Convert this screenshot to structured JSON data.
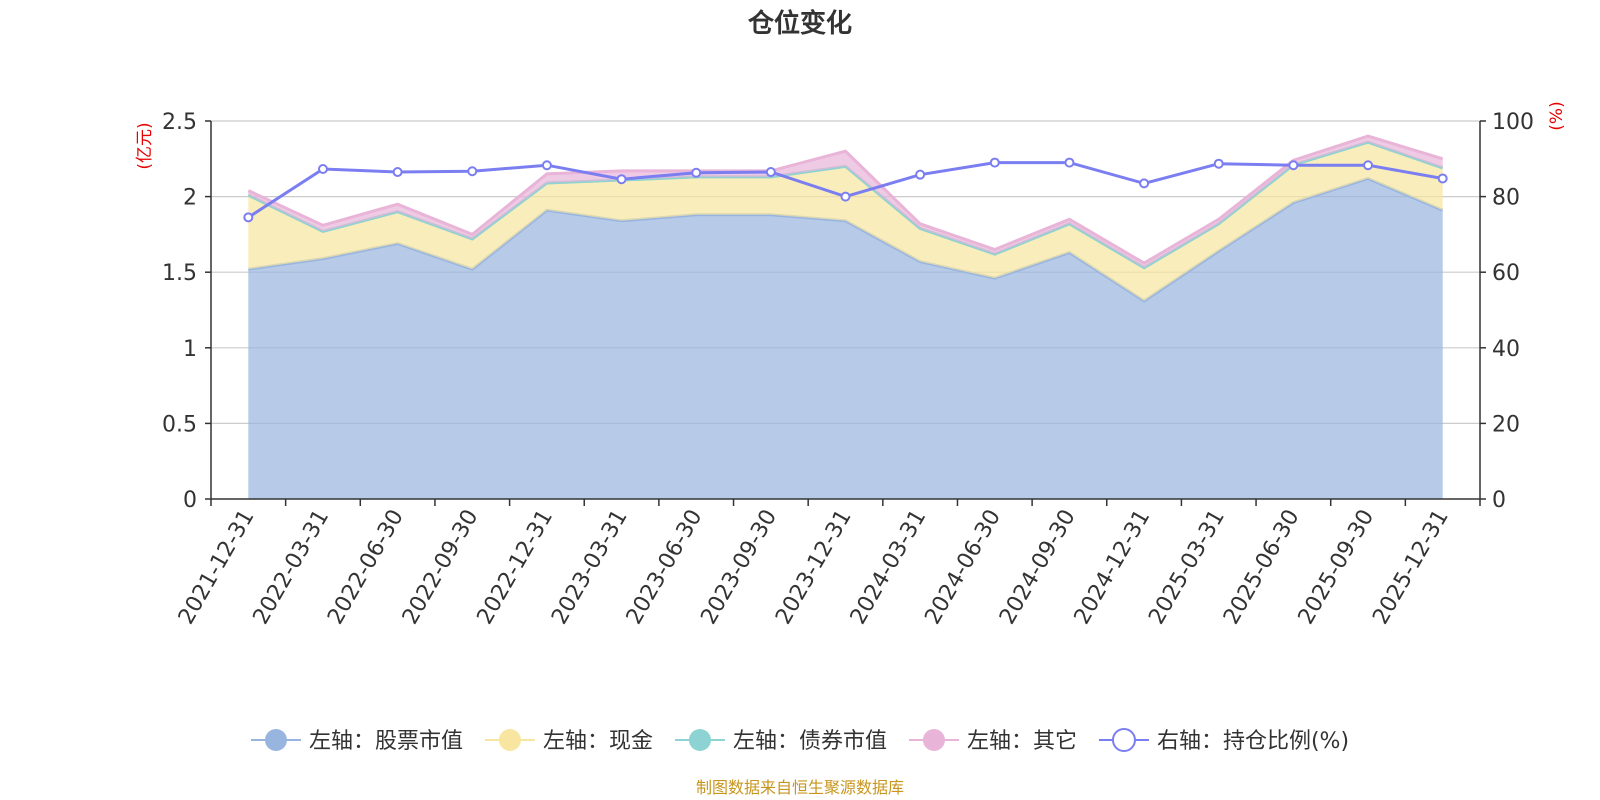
{
  "colors": {
    "stock": "#98b5e0",
    "cash": "#f8e6a0",
    "bond": "#8dd3d3",
    "other": "#e8b4d8",
    "ratio": "#7b7ef0",
    "unit": "#e60000",
    "source": "#c8961e"
  },
  "chart_data": {
    "type": "area",
    "title": "仓位变化",
    "y_left_unit": "(亿元)",
    "y_right_unit": "(%)",
    "y_left_range": [
      0,
      2.5
    ],
    "y_left_ticks": [
      "0",
      "0.5",
      "1",
      "1.5",
      "2",
      "2.5"
    ],
    "y_right_range": [
      0,
      100
    ],
    "y_right_ticks": [
      "0",
      "20",
      "40",
      "60",
      "80",
      "100"
    ],
    "grid": true,
    "legend_position": "bottom",
    "categories": [
      "2021-12-31",
      "2022-03-31",
      "2022-06-30",
      "2022-09-30",
      "2022-12-31",
      "2023-03-31",
      "2023-06-30",
      "2023-09-30",
      "2023-12-31",
      "2024-03-31",
      "2024-06-30",
      "2024-09-30",
      "2024-12-31",
      "2025-03-31",
      "2025-06-30",
      "2025-09-30",
      "2025-12-31"
    ],
    "series": [
      {
        "name": "左轴：股票市值",
        "axis": "left",
        "stacked": true,
        "color_key": "stock",
        "values": [
          1.52,
          1.59,
          1.69,
          1.52,
          1.91,
          1.84,
          1.88,
          1.88,
          1.84,
          1.57,
          1.46,
          1.63,
          1.31,
          1.64,
          1.96,
          2.12,
          1.91
        ]
      },
      {
        "name": "左轴：现金",
        "axis": "left",
        "stacked": true,
        "color_key": "cash",
        "values": [
          0.49,
          0.18,
          0.21,
          0.2,
          0.18,
          0.27,
          0.25,
          0.25,
          0.36,
          0.22,
          0.16,
          0.19,
          0.22,
          0.18,
          0.25,
          0.24,
          0.28
        ]
      },
      {
        "name": "左轴：债券市值",
        "axis": "left",
        "stacked": true,
        "color_key": "bond",
        "values": [
          0,
          0,
          0,
          0,
          0,
          0,
          0,
          0,
          0,
          0,
          0,
          0,
          0,
          0,
          0,
          0,
          0
        ]
      },
      {
        "name": "左轴：其它",
        "axis": "left",
        "stacked": true,
        "color_key": "other",
        "values": [
          0.03,
          0.04,
          0.05,
          0.03,
          0.06,
          0.06,
          0.04,
          0.04,
          0.1,
          0.03,
          0.03,
          0.03,
          0.03,
          0.03,
          0.03,
          0.04,
          0.06
        ]
      },
      {
        "name": "右轴：持仓比例(%)",
        "axis": "right",
        "type": "line",
        "color_key": "ratio",
        "values": [
          74.5,
          87.3,
          86.5,
          86.7,
          88.3,
          84.6,
          86.3,
          86.5,
          80.0,
          85.8,
          89.0,
          89.0,
          83.5,
          88.7,
          88.3,
          88.3,
          84.8
        ]
      }
    ],
    "source_note": "制图数据来自恒生聚源数据库"
  }
}
